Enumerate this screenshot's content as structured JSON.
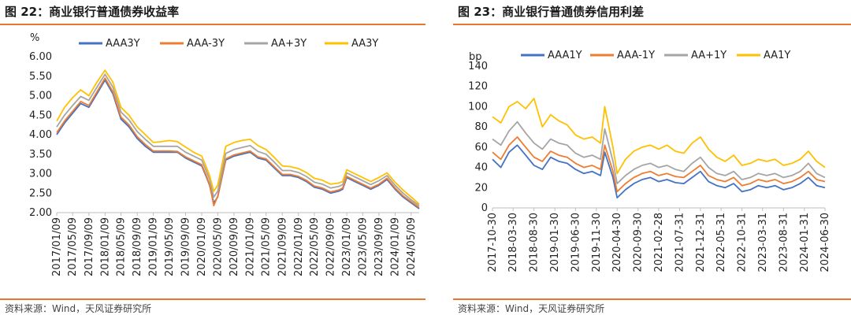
{
  "left": {
    "title": "图 22：商业银行普通债券收益率",
    "source": "资料来源：Wind，天风证券研究所"
  },
  "right": {
    "title": "图 23：商业银行普通债券信用利差",
    "source": "资料来源：Wind，天风证券研究所"
  },
  "chart_data": [
    {
      "type": "line",
      "title": "图 22：商业银行普通债券收益率",
      "ylabel": "%",
      "ylim": [
        2.0,
        6.0
      ],
      "yticks": [
        "6.00",
        "5.50",
        "5.00",
        "4.50",
        "4.00",
        "3.50",
        "3.00",
        "2.50",
        "2.00"
      ],
      "x_start": "2017/01/09",
      "x_end": "2024/07/09",
      "xticks": [
        "2017/01/09",
        "2017/05/09",
        "2017/09/09",
        "2018/01/09",
        "2018/05/09",
        "2018/09/09",
        "2019/01/09",
        "2019/05/09",
        "2019/09/09",
        "2020/01/09",
        "2020/05/09",
        "2020/09/09",
        "2021/01/09",
        "2021/05/09",
        "2021/09/09",
        "2022/01/09",
        "2022/05/09",
        "2022/09/09",
        "2023/01/09",
        "2023/05/09",
        "2023/09/09",
        "2024/01/09",
        "2024/05/09"
      ],
      "legend_position": "top",
      "colors": {
        "AAA3Y": "#4472c4",
        "AAA-3Y": "#ed7d31",
        "AA+3Y": "#a5a5a5",
        "AA3Y": "#ffc000"
      },
      "series": [
        {
          "name": "AAA3Y",
          "x": [
            "2017/01/09",
            "2017/03/09",
            "2017/05/09",
            "2017/07/09",
            "2017/09/09",
            "2017/11/09",
            "2018/01/09",
            "2018/03/09",
            "2018/05/09",
            "2018/07/09",
            "2018/09/09",
            "2018/11/09",
            "2019/01/09",
            "2019/03/09",
            "2019/05/09",
            "2019/07/09",
            "2019/09/09",
            "2019/11/09",
            "2020/01/09",
            "2020/02/09",
            "2020/03/09",
            "2020/04/09",
            "2020/05/09",
            "2020/07/09",
            "2020/09/09",
            "2020/11/09",
            "2021/01/09",
            "2021/03/09",
            "2021/05/09",
            "2021/07/09",
            "2021/09/09",
            "2021/11/09",
            "2022/01/09",
            "2022/03/09",
            "2022/05/09",
            "2022/07/09",
            "2022/09/09",
            "2022/11/09",
            "2022/12/09",
            "2023/01/09",
            "2023/03/09",
            "2023/05/09",
            "2023/07/09",
            "2023/09/09",
            "2023/11/09",
            "2024/01/09",
            "2024/03/09",
            "2024/05/09",
            "2024/07/09"
          ],
          "values": [
            4.0,
            4.3,
            4.55,
            4.8,
            4.7,
            5.05,
            5.4,
            5.05,
            4.4,
            4.2,
            3.9,
            3.7,
            3.55,
            3.55,
            3.55,
            3.55,
            3.4,
            3.3,
            3.2,
            2.95,
            2.7,
            2.25,
            2.4,
            3.35,
            3.45,
            3.5,
            3.55,
            3.4,
            3.35,
            3.15,
            2.95,
            2.95,
            2.9,
            2.8,
            2.65,
            2.6,
            2.5,
            2.55,
            2.6,
            2.9,
            2.8,
            2.7,
            2.6,
            2.7,
            2.85,
            2.6,
            2.4,
            2.25,
            2.1
          ]
        },
        {
          "name": "AAA-3Y",
          "x": [
            "2017/01/09",
            "2017/03/09",
            "2017/05/09",
            "2017/07/09",
            "2017/09/09",
            "2017/11/09",
            "2018/01/09",
            "2018/03/09",
            "2018/05/09",
            "2018/07/09",
            "2018/09/09",
            "2018/11/09",
            "2019/01/09",
            "2019/03/09",
            "2019/05/09",
            "2019/07/09",
            "2019/09/09",
            "2019/11/09",
            "2020/01/09",
            "2020/02/09",
            "2020/03/09",
            "2020/04/09",
            "2020/05/09",
            "2020/07/09",
            "2020/09/09",
            "2020/11/09",
            "2021/01/09",
            "2021/03/09",
            "2021/05/09",
            "2021/07/09",
            "2021/09/09",
            "2021/11/09",
            "2022/01/09",
            "2022/03/09",
            "2022/05/09",
            "2022/07/09",
            "2022/09/09",
            "2022/11/09",
            "2022/12/09",
            "2023/01/09",
            "2023/03/09",
            "2023/05/09",
            "2023/07/09",
            "2023/09/09",
            "2023/11/09",
            "2024/01/09",
            "2024/03/09",
            "2024/05/09",
            "2024/07/09"
          ],
          "values": [
            4.05,
            4.35,
            4.6,
            4.85,
            4.75,
            5.1,
            5.45,
            5.1,
            4.45,
            4.25,
            3.95,
            3.75,
            3.58,
            3.58,
            3.58,
            3.57,
            3.43,
            3.33,
            3.23,
            2.98,
            2.72,
            2.18,
            2.42,
            3.38,
            3.48,
            3.53,
            3.58,
            3.43,
            3.38,
            3.18,
            2.98,
            2.98,
            2.93,
            2.83,
            2.68,
            2.63,
            2.53,
            2.58,
            2.63,
            2.93,
            2.83,
            2.73,
            2.63,
            2.73,
            2.88,
            2.63,
            2.43,
            2.28,
            2.13
          ]
        },
        {
          "name": "AA+3Y",
          "x": [
            "2017/01/09",
            "2017/03/09",
            "2017/05/09",
            "2017/07/09",
            "2017/09/09",
            "2017/11/09",
            "2018/01/09",
            "2018/03/09",
            "2018/05/09",
            "2018/07/09",
            "2018/09/09",
            "2018/11/09",
            "2019/01/09",
            "2019/03/09",
            "2019/05/09",
            "2019/07/09",
            "2019/09/09",
            "2019/11/09",
            "2020/01/09",
            "2020/02/09",
            "2020/03/09",
            "2020/04/09",
            "2020/05/09",
            "2020/07/09",
            "2020/09/09",
            "2020/11/09",
            "2021/01/09",
            "2021/03/09",
            "2021/05/09",
            "2021/07/09",
            "2021/09/09",
            "2021/11/09",
            "2022/01/09",
            "2022/03/09",
            "2022/05/09",
            "2022/07/09",
            "2022/09/09",
            "2022/11/09",
            "2022/12/09",
            "2023/01/09",
            "2023/03/09",
            "2023/05/09",
            "2023/07/09",
            "2023/09/09",
            "2023/11/09",
            "2024/01/09",
            "2024/03/09",
            "2024/05/09",
            "2024/07/09"
          ],
          "values": [
            4.2,
            4.5,
            4.75,
            4.98,
            4.88,
            5.22,
            5.55,
            5.22,
            4.58,
            4.38,
            4.08,
            3.88,
            3.7,
            3.7,
            3.7,
            3.7,
            3.55,
            3.45,
            3.35,
            3.1,
            2.85,
            2.4,
            2.55,
            3.52,
            3.62,
            3.67,
            3.72,
            3.57,
            3.5,
            3.3,
            3.08,
            3.08,
            3.03,
            2.93,
            2.78,
            2.73,
            2.63,
            2.67,
            2.72,
            3.02,
            2.92,
            2.82,
            2.72,
            2.82,
            2.95,
            2.7,
            2.5,
            2.33,
            2.18
          ]
        },
        {
          "name": "AA3Y",
          "x": [
            "2017/01/09",
            "2017/03/09",
            "2017/05/09",
            "2017/07/09",
            "2017/09/09",
            "2017/11/09",
            "2018/01/09",
            "2018/03/09",
            "2018/05/09",
            "2018/07/09",
            "2018/09/09",
            "2018/11/09",
            "2019/01/09",
            "2019/03/09",
            "2019/05/09",
            "2019/07/09",
            "2019/09/09",
            "2019/11/09",
            "2020/01/09",
            "2020/02/09",
            "2020/03/09",
            "2020/04/09",
            "2020/05/09",
            "2020/07/09",
            "2020/09/09",
            "2020/11/09",
            "2021/01/09",
            "2021/03/09",
            "2021/05/09",
            "2021/07/09",
            "2021/09/09",
            "2021/11/09",
            "2022/01/09",
            "2022/03/09",
            "2022/05/09",
            "2022/07/09",
            "2022/09/09",
            "2022/11/09",
            "2022/12/09",
            "2023/01/09",
            "2023/03/09",
            "2023/05/09",
            "2023/07/09",
            "2023/09/09",
            "2023/11/09",
            "2024/01/09",
            "2024/03/09",
            "2024/05/09",
            "2024/07/09"
          ],
          "values": [
            4.35,
            4.7,
            4.95,
            5.15,
            5.0,
            5.35,
            5.65,
            5.35,
            4.7,
            4.5,
            4.2,
            4.0,
            3.8,
            3.82,
            3.85,
            3.82,
            3.68,
            3.55,
            3.45,
            3.2,
            2.95,
            2.55,
            2.7,
            3.7,
            3.8,
            3.85,
            3.88,
            3.72,
            3.62,
            3.42,
            3.2,
            3.18,
            3.13,
            3.03,
            2.88,
            2.83,
            2.73,
            2.76,
            2.8,
            3.1,
            3.0,
            2.9,
            2.8,
            2.9,
            3.02,
            2.78,
            2.58,
            2.4,
            2.22
          ]
        }
      ]
    },
    {
      "type": "line",
      "title": "图 23：商业银行普通债券信用利差",
      "ylabel": "bp",
      "ylim": [
        0,
        140
      ],
      "yticks": [
        "140",
        "120",
        "100",
        "80",
        "60",
        "40",
        "20",
        "0"
      ],
      "x_start": "2017-10-30",
      "x_end": "2024-06-30",
      "xticks": [
        "2017-10-30",
        "2018-03-30",
        "2018-08-30",
        "2019-01-30",
        "2019-06-30",
        "2019-11-30",
        "2020-04-30",
        "2020-09-30",
        "2021-02-28",
        "2021-07-31",
        "2021-12-31",
        "2022-05-31",
        "2022-10-31",
        "2023-03-31",
        "2023-08-31",
        "2024-01-31",
        "2024-06-30"
      ],
      "legend_position": "top",
      "colors": {
        "AAA1Y": "#4472c4",
        "AAA-1Y": "#ed7d31",
        "AA+1Y": "#a5a5a5",
        "AA1Y": "#ffc000"
      },
      "series": [
        {
          "name": "AAA1Y",
          "x": [
            "2017-10-30",
            "2017-12-30",
            "2018-02-28",
            "2018-04-30",
            "2018-06-30",
            "2018-08-30",
            "2018-10-30",
            "2018-12-30",
            "2019-02-28",
            "2019-04-30",
            "2019-06-30",
            "2019-08-30",
            "2019-10-30",
            "2019-12-30",
            "2020-01-30",
            "2020-03-30",
            "2020-04-30",
            "2020-06-30",
            "2020-08-30",
            "2020-10-30",
            "2020-12-30",
            "2021-02-28",
            "2021-04-30",
            "2021-06-30",
            "2021-08-31",
            "2021-10-31",
            "2021-12-31",
            "2022-02-28",
            "2022-04-30",
            "2022-06-30",
            "2022-08-31",
            "2022-10-31",
            "2022-12-31",
            "2023-02-28",
            "2023-04-30",
            "2023-06-30",
            "2023-08-31",
            "2023-10-31",
            "2023-12-31",
            "2024-02-29",
            "2024-04-30",
            "2024-06-30"
          ],
          "values": [
            48,
            40,
            55,
            62,
            52,
            42,
            38,
            50,
            46,
            44,
            38,
            34,
            36,
            32,
            55,
            30,
            10,
            18,
            24,
            28,
            30,
            26,
            28,
            25,
            24,
            30,
            36,
            26,
            22,
            20,
            24,
            16,
            18,
            22,
            20,
            22,
            18,
            20,
            24,
            30,
            22,
            20
          ]
        },
        {
          "name": "AAA-1Y",
          "x": [
            "2017-10-30",
            "2017-12-30",
            "2018-02-28",
            "2018-04-30",
            "2018-06-30",
            "2018-08-30",
            "2018-10-30",
            "2018-12-30",
            "2019-02-28",
            "2019-04-30",
            "2019-06-30",
            "2019-08-30",
            "2019-10-30",
            "2019-12-30",
            "2020-01-30",
            "2020-03-30",
            "2020-04-30",
            "2020-06-30",
            "2020-08-30",
            "2020-10-30",
            "2020-12-30",
            "2021-02-28",
            "2021-04-30",
            "2021-06-30",
            "2021-08-31",
            "2021-10-31",
            "2021-12-31",
            "2022-02-28",
            "2022-04-30",
            "2022-06-30",
            "2022-08-31",
            "2022-10-31",
            "2022-12-31",
            "2023-02-28",
            "2023-04-30",
            "2023-06-30",
            "2023-08-31",
            "2023-10-31",
            "2023-12-31",
            "2024-02-29",
            "2024-04-30",
            "2024-06-30"
          ],
          "values": [
            55,
            48,
            62,
            70,
            60,
            50,
            46,
            56,
            52,
            50,
            44,
            40,
            42,
            38,
            62,
            36,
            16,
            24,
            30,
            34,
            36,
            32,
            34,
            31,
            30,
            36,
            42,
            32,
            28,
            26,
            30,
            22,
            24,
            28,
            26,
            28,
            24,
            26,
            30,
            36,
            28,
            26
          ]
        },
        {
          "name": "AA+1Y",
          "x": [
            "2017-10-30",
            "2017-12-30",
            "2018-02-28",
            "2018-04-30",
            "2018-06-30",
            "2018-08-30",
            "2018-10-30",
            "2018-12-30",
            "2019-02-28",
            "2019-04-30",
            "2019-06-30",
            "2019-08-30",
            "2019-10-30",
            "2019-12-30",
            "2020-01-30",
            "2020-03-30",
            "2020-04-30",
            "2020-06-30",
            "2020-08-30",
            "2020-10-30",
            "2020-12-30",
            "2021-02-28",
            "2021-04-30",
            "2021-06-30",
            "2021-08-31",
            "2021-10-31",
            "2021-12-31",
            "2022-02-28",
            "2022-04-30",
            "2022-06-30",
            "2022-08-31",
            "2022-10-31",
            "2022-12-31",
            "2023-02-28",
            "2023-04-30",
            "2023-06-30",
            "2023-08-31",
            "2023-10-31",
            "2023-12-31",
            "2024-02-29",
            "2024-04-30",
            "2024-06-30"
          ],
          "values": [
            68,
            62,
            76,
            85,
            74,
            64,
            58,
            68,
            64,
            62,
            54,
            50,
            52,
            48,
            78,
            46,
            24,
            32,
            38,
            42,
            44,
            40,
            42,
            38,
            36,
            44,
            50,
            40,
            34,
            32,
            36,
            28,
            30,
            34,
            32,
            34,
            30,
            32,
            36,
            44,
            34,
            30
          ]
        },
        {
          "name": "AA1Y",
          "x": [
            "2017-10-30",
            "2017-12-30",
            "2018-02-28",
            "2018-04-30",
            "2018-06-30",
            "2018-08-30",
            "2018-10-30",
            "2018-12-30",
            "2019-02-28",
            "2019-04-30",
            "2019-06-30",
            "2019-08-30",
            "2019-10-30",
            "2019-12-30",
            "2020-01-30",
            "2020-03-30",
            "2020-04-30",
            "2020-06-30",
            "2020-08-30",
            "2020-10-30",
            "2020-12-30",
            "2021-02-28",
            "2021-04-30",
            "2021-06-30",
            "2021-08-31",
            "2021-10-31",
            "2021-12-31",
            "2022-02-28",
            "2022-04-30",
            "2022-06-30",
            "2022-08-31",
            "2022-10-31",
            "2022-12-31",
            "2023-02-28",
            "2023-04-30",
            "2023-06-30",
            "2023-08-31",
            "2023-10-31",
            "2023-12-31",
            "2024-02-29",
            "2024-04-30",
            "2024-06-30"
          ],
          "values": [
            90,
            84,
            100,
            105,
            98,
            108,
            80,
            92,
            86,
            82,
            72,
            68,
            70,
            64,
            100,
            60,
            34,
            48,
            56,
            60,
            62,
            58,
            62,
            56,
            54,
            64,
            70,
            58,
            50,
            46,
            52,
            42,
            44,
            48,
            46,
            48,
            42,
            44,
            48,
            56,
            46,
            40
          ]
        }
      ]
    }
  ]
}
